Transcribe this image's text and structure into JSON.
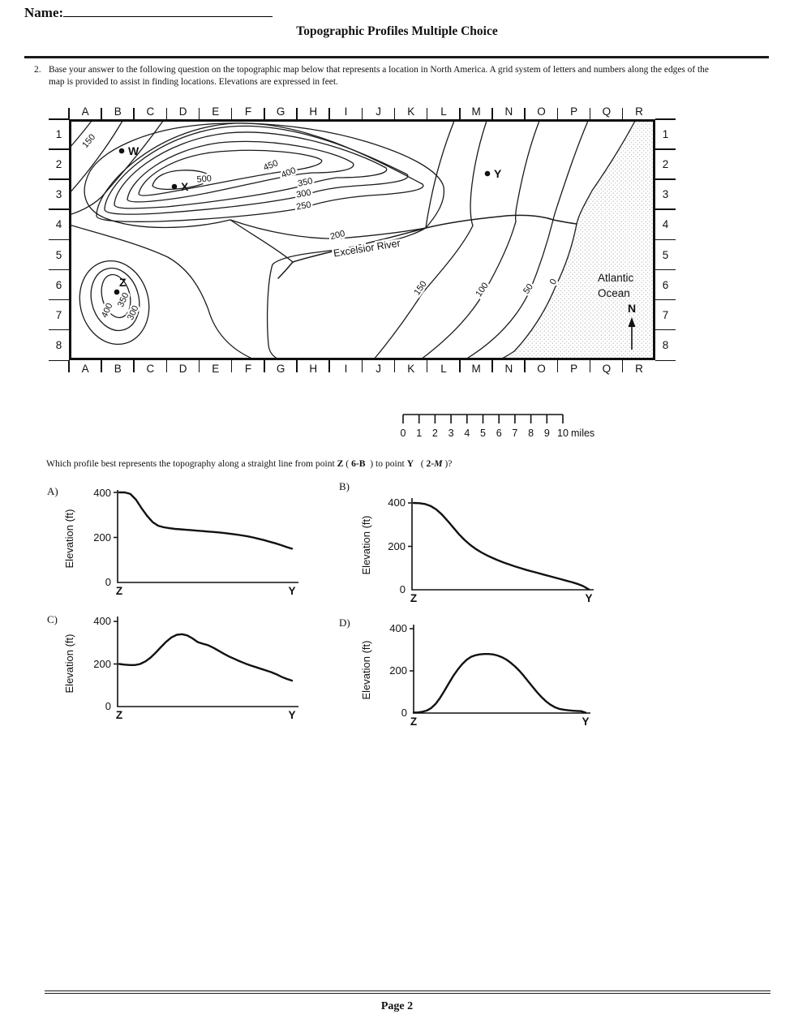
{
  "page": {
    "name_label": "Name:",
    "title": "Topographic Profiles Multiple Choice",
    "footer": "Page 2"
  },
  "question": {
    "number": "2.",
    "intro": "Base your answer to the following question on the topographic map below that represents a location in North America. A grid system of letters and numbers along the edges of the map is provided to assist in finding locations. Elevations are expressed in feet."
  },
  "map": {
    "grid_letters": [
      "A",
      "B",
      "C",
      "D",
      "E",
      "F",
      "G",
      "H",
      "I",
      "J",
      "K",
      "L",
      "M",
      "N",
      "O",
      "P",
      "Q",
      "R"
    ],
    "grid_numbers": [
      "1",
      "2",
      "3",
      "4",
      "5",
      "6",
      "7",
      "8"
    ],
    "points": {
      "w": "W",
      "x": "X",
      "y": "Y",
      "z": "Z"
    },
    "contour_labels": {
      "nw150": "150",
      "c500": "500",
      "c450": "450",
      "c400": "400",
      "c350": "350",
      "c300": "300",
      "c250": "250",
      "c200": "200",
      "e150": "150",
      "e100": "100",
      "e50": "50",
      "e0": "0",
      "z400": "400",
      "z350": "350",
      "z300": "300"
    },
    "river_label": "Excelsior River",
    "ocean_line1": "Atlantic",
    "ocean_line2": "Ocean",
    "north_label": "N"
  },
  "scale_bar": {
    "tick_labels": [
      "0",
      "1",
      "2",
      "3",
      "4",
      "5",
      "6",
      "7",
      "8",
      "9",
      "10"
    ],
    "unit": "miles"
  },
  "prompt": {
    "parts": [
      "Which profile best represents the topography along a straight line from point ",
      "Z",
      " ( ",
      "6-B",
      "  ) to point ",
      "Y",
      "   ( ",
      "2-",
      "M",
      " )?"
    ]
  },
  "chart_data": [
    {
      "id": "A",
      "label": "A)",
      "type": "line",
      "title": "",
      "xlabel": "",
      "ylabel": "Elevation (ft)",
      "ylim": [
        0,
        400
      ],
      "yticks": [
        400,
        200,
        0
      ],
      "x_endpoints": [
        "Z",
        "Y"
      ],
      "values_ft": [
        400,
        400,
        393,
        368,
        330,
        296,
        268,
        252,
        245,
        241,
        238,
        236,
        234,
        232,
        230,
        228,
        226,
        224,
        222,
        219,
        216,
        213,
        209,
        205,
        200,
        194,
        188,
        181,
        174,
        166,
        158,
        150
      ]
    },
    {
      "id": "B",
      "label": "B)",
      "type": "line",
      "title": "",
      "xlabel": "",
      "ylabel": "Elevation (ft)",
      "ylim": [
        0,
        400
      ],
      "yticks": [
        400,
        200,
        0
      ],
      "x_endpoints": [
        "Z",
        "Y"
      ],
      "values_ft": [
        400,
        399,
        395,
        386,
        370,
        347,
        318,
        287,
        257,
        230,
        207,
        188,
        172,
        158,
        146,
        135,
        125,
        116,
        107,
        99,
        91,
        84,
        77,
        70,
        63,
        56,
        49,
        42,
        35,
        27,
        17,
        2
      ]
    },
    {
      "id": "C",
      "label": "C)",
      "type": "line",
      "title": "",
      "xlabel": "",
      "ylabel": "Elevation (ft)",
      "ylim": [
        0,
        400
      ],
      "yticks": [
        400,
        200,
        0
      ],
      "x_endpoints": [
        "Z",
        "Y"
      ],
      "values_ft": [
        200,
        197,
        195,
        195,
        200,
        212,
        230,
        254,
        280,
        305,
        325,
        337,
        340,
        334,
        320,
        303,
        295,
        288,
        276,
        262,
        248,
        235,
        224,
        213,
        203,
        194,
        186,
        178,
        170,
        162,
        152,
        140,
        130,
        122
      ]
    },
    {
      "id": "D",
      "label": "D)",
      "type": "line",
      "title": "",
      "xlabel": "",
      "ylabel": "Elevation (ft)",
      "ylim": [
        0,
        400
      ],
      "yticks": [
        400,
        200,
        0
      ],
      "x_endpoints": [
        "Z",
        "Y"
      ],
      "values_ft": [
        2,
        3,
        6,
        12,
        24,
        44,
        72,
        106,
        142,
        176,
        206,
        232,
        252,
        266,
        274,
        278,
        280,
        280,
        278,
        273,
        265,
        254,
        239,
        221,
        200,
        176,
        150,
        124,
        99,
        76,
        56,
        40,
        28,
        20,
        16,
        13,
        11,
        10,
        9,
        2
      ]
    }
  ]
}
